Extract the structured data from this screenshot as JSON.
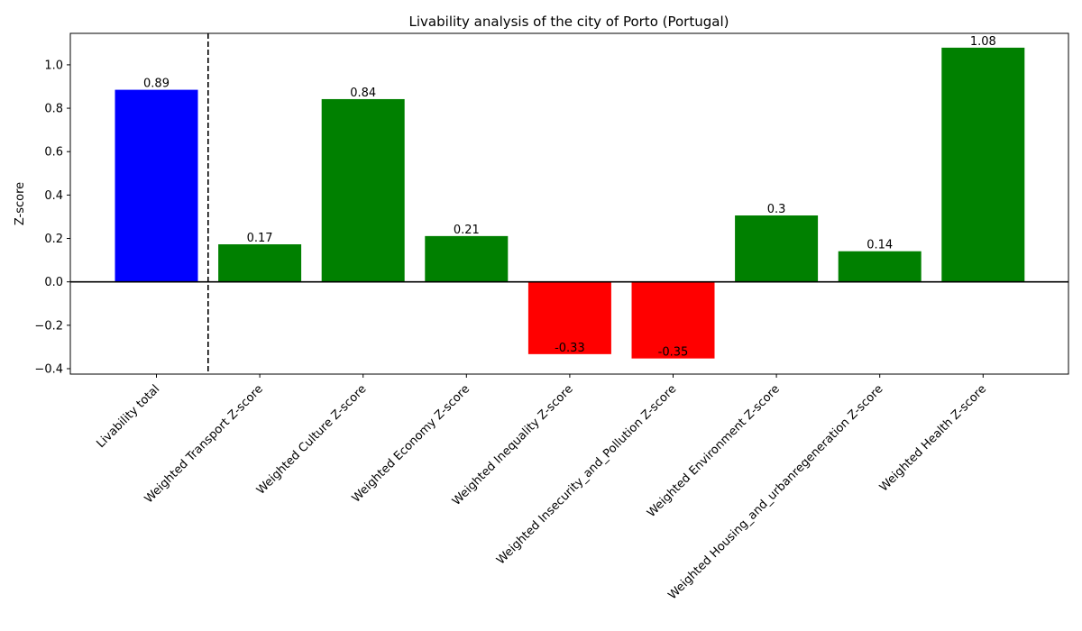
{
  "chart_data": {
    "type": "bar",
    "title": "Livability analysis of the city of Porto (Portugal)",
    "xlabel": "",
    "ylabel": "Z-score",
    "ylim": [
      -0.425,
      1.145
    ],
    "yticks": [
      -0.4,
      -0.2,
      0.0,
      0.2,
      0.4,
      0.6,
      0.8,
      1.0
    ],
    "ytick_labels": [
      "−0.4",
      "−0.2",
      "0.0",
      "0.2",
      "0.4",
      "0.6",
      "0.8",
      "1.0"
    ],
    "grid": false,
    "categories": [
      "Livability total",
      "Weighted Transport Z-score",
      "Weighted Culture Z-score",
      "Weighted Economy Z-score",
      "Weighted Inequality Z-score",
      "Weighted Insecurity_and_Pollution Z-score",
      "Weighted Environment Z-score",
      "Weighted Housing_and_urbanregeneration Z-score",
      "Weighted Health Z-score"
    ],
    "values": [
      0.885,
      0.173,
      0.842,
      0.211,
      -0.333,
      -0.353,
      0.306,
      0.141,
      1.079
    ],
    "value_labels": [
      "0.89",
      "0.17",
      "0.84",
      "0.21",
      "-0.33",
      "-0.35",
      "0.3",
      "0.14",
      "1.08"
    ],
    "colors": [
      "#0000ff",
      "#008000",
      "#008000",
      "#008000",
      "#ff0000",
      "#ff0000",
      "#008000",
      "#008000",
      "#008000"
    ],
    "zero_line": true,
    "separator_after_index": 0
  }
}
